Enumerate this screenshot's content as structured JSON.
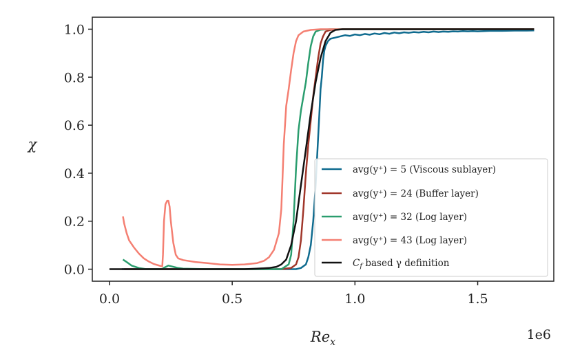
{
  "chart_data": {
    "type": "line",
    "title": "",
    "xlabel": "Re_x",
    "xlabel_display": "Rex",
    "ylabel": "χ",
    "offset_label": "1e6",
    "xlim": [
      -0.07,
      1.81
    ],
    "ylim": [
      -0.05,
      1.05
    ],
    "xticks": [
      0.0,
      0.5,
      1.0,
      1.5
    ],
    "xtick_labels": [
      "0.0",
      "0.5",
      "1.0",
      "1.5"
    ],
    "yticks": [
      0.0,
      0.2,
      0.4,
      0.6,
      0.8,
      1.0
    ],
    "ytick_labels": [
      "0.0",
      "0.2",
      "0.4",
      "0.6",
      "0.8",
      "1.0"
    ],
    "grid": false,
    "legend_position": "lower-right",
    "series": [
      {
        "name": "avg(y+) = 5 (Viscous sublayer)",
        "legend": "avg(y⁺) = 5 (Viscous sublayer)",
        "color": "#0f6b8f",
        "points": [
          [
            0.05,
            0.0
          ],
          [
            0.2,
            0.0
          ],
          [
            0.4,
            0.0
          ],
          [
            0.6,
            0.0
          ],
          [
            0.72,
            0.0
          ],
          [
            0.76,
            0.0
          ],
          [
            0.78,
            0.005
          ],
          [
            0.8,
            0.02
          ],
          [
            0.81,
            0.05
          ],
          [
            0.82,
            0.1
          ],
          [
            0.83,
            0.2
          ],
          [
            0.84,
            0.35
          ],
          [
            0.85,
            0.55
          ],
          [
            0.855,
            0.65
          ],
          [
            0.86,
            0.75
          ],
          [
            0.865,
            0.8
          ],
          [
            0.87,
            0.87
          ],
          [
            0.875,
            0.91
          ],
          [
            0.88,
            0.93
          ],
          [
            0.89,
            0.95
          ],
          [
            0.9,
            0.96
          ],
          [
            0.92,
            0.965
          ],
          [
            0.94,
            0.97
          ],
          [
            0.96,
            0.975
          ],
          [
            0.98,
            0.972
          ],
          [
            1.0,
            0.978
          ],
          [
            1.02,
            0.975
          ],
          [
            1.04,
            0.98
          ],
          [
            1.06,
            0.977
          ],
          [
            1.08,
            0.982
          ],
          [
            1.1,
            0.979
          ],
          [
            1.12,
            0.984
          ],
          [
            1.14,
            0.981
          ],
          [
            1.16,
            0.986
          ],
          [
            1.18,
            0.983
          ],
          [
            1.2,
            0.987
          ],
          [
            1.22,
            0.985
          ],
          [
            1.24,
            0.988
          ],
          [
            1.26,
            0.986
          ],
          [
            1.28,
            0.989
          ],
          [
            1.3,
            0.987
          ],
          [
            1.32,
            0.99
          ],
          [
            1.34,
            0.988
          ],
          [
            1.36,
            0.99
          ],
          [
            1.38,
            0.989
          ],
          [
            1.4,
            0.991
          ],
          [
            1.42,
            0.99
          ],
          [
            1.44,
            0.992
          ],
          [
            1.46,
            0.991
          ],
          [
            1.48,
            0.992
          ],
          [
            1.5,
            0.991
          ],
          [
            1.55,
            0.993
          ],
          [
            1.6,
            0.993
          ],
          [
            1.65,
            0.994
          ],
          [
            1.7,
            0.994
          ],
          [
            1.73,
            0.995
          ]
        ]
      },
      {
        "name": "avg(y+) = 24 (Buffer layer)",
        "legend": "avg(y⁺) = 24 (Buffer layer)",
        "color": "#a0362a",
        "points": [
          [
            0.06,
            0.0
          ],
          [
            0.3,
            0.0
          ],
          [
            0.6,
            0.0
          ],
          [
            0.7,
            0.0
          ],
          [
            0.74,
            0.005
          ],
          [
            0.76,
            0.02
          ],
          [
            0.77,
            0.05
          ],
          [
            0.78,
            0.12
          ],
          [
            0.79,
            0.25
          ],
          [
            0.8,
            0.4
          ],
          [
            0.81,
            0.52
          ],
          [
            0.82,
            0.62
          ],
          [
            0.83,
            0.72
          ],
          [
            0.84,
            0.8
          ],
          [
            0.85,
            0.88
          ],
          [
            0.86,
            0.94
          ],
          [
            0.87,
            0.97
          ],
          [
            0.88,
            0.99
          ],
          [
            0.9,
            0.997
          ],
          [
            0.95,
            1.0
          ],
          [
            1.2,
            1.0
          ],
          [
            1.5,
            1.0
          ],
          [
            1.73,
            1.0
          ]
        ]
      },
      {
        "name": "avg(y+) = 32 (Log layer)",
        "legend": "avg(y⁺) = 32 (Log layer)",
        "color": "#2a9d6e",
        "points": [
          [
            0.055,
            0.04
          ],
          [
            0.07,
            0.03
          ],
          [
            0.09,
            0.015
          ],
          [
            0.12,
            0.005
          ],
          [
            0.15,
            0.0
          ],
          [
            0.2,
            0.0
          ],
          [
            0.215,
            0.0
          ],
          [
            0.22,
            0.005
          ],
          [
            0.23,
            0.01
          ],
          [
            0.24,
            0.015
          ],
          [
            0.26,
            0.01
          ],
          [
            0.28,
            0.005
          ],
          [
            0.3,
            0.002
          ],
          [
            0.4,
            0.0
          ],
          [
            0.6,
            0.0
          ],
          [
            0.7,
            0.0
          ],
          [
            0.73,
            0.02
          ],
          [
            0.74,
            0.06
          ],
          [
            0.75,
            0.2
          ],
          [
            0.76,
            0.42
          ],
          [
            0.77,
            0.58
          ],
          [
            0.78,
            0.66
          ],
          [
            0.79,
            0.72
          ],
          [
            0.8,
            0.78
          ],
          [
            0.81,
            0.86
          ],
          [
            0.82,
            0.93
          ],
          [
            0.83,
            0.97
          ],
          [
            0.84,
            0.99
          ],
          [
            0.86,
            0.998
          ],
          [
            0.9,
            1.0
          ],
          [
            1.2,
            1.0
          ],
          [
            1.5,
            1.0
          ],
          [
            1.73,
            1.0
          ]
        ]
      },
      {
        "name": "avg(y+) = 43 (Log layer)",
        "legend": "avg(y⁺) = 43 (Log layer)",
        "color": "#f47f72",
        "points": [
          [
            0.055,
            0.22
          ],
          [
            0.06,
            0.19
          ],
          [
            0.07,
            0.15
          ],
          [
            0.08,
            0.12
          ],
          [
            0.1,
            0.09
          ],
          [
            0.12,
            0.065
          ],
          [
            0.14,
            0.045
          ],
          [
            0.16,
            0.032
          ],
          [
            0.18,
            0.022
          ],
          [
            0.2,
            0.016
          ],
          [
            0.21,
            0.013
          ],
          [
            0.215,
            0.012
          ],
          [
            0.218,
            0.06
          ],
          [
            0.222,
            0.2
          ],
          [
            0.228,
            0.27
          ],
          [
            0.235,
            0.285
          ],
          [
            0.24,
            0.285
          ],
          [
            0.245,
            0.26
          ],
          [
            0.25,
            0.2
          ],
          [
            0.26,
            0.11
          ],
          [
            0.27,
            0.06
          ],
          [
            0.28,
            0.045
          ],
          [
            0.3,
            0.038
          ],
          [
            0.35,
            0.03
          ],
          [
            0.4,
            0.025
          ],
          [
            0.45,
            0.02
          ],
          [
            0.5,
            0.018
          ],
          [
            0.55,
            0.02
          ],
          [
            0.6,
            0.025
          ],
          [
            0.63,
            0.035
          ],
          [
            0.65,
            0.05
          ],
          [
            0.67,
            0.08
          ],
          [
            0.69,
            0.15
          ],
          [
            0.7,
            0.25
          ],
          [
            0.705,
            0.38
          ],
          [
            0.71,
            0.52
          ],
          [
            0.715,
            0.6
          ],
          [
            0.72,
            0.68
          ],
          [
            0.73,
            0.75
          ],
          [
            0.74,
            0.83
          ],
          [
            0.75,
            0.9
          ],
          [
            0.76,
            0.95
          ],
          [
            0.77,
            0.975
          ],
          [
            0.79,
            0.99
          ],
          [
            0.82,
            0.997
          ],
          [
            0.86,
            1.0
          ],
          [
            1.2,
            1.0
          ],
          [
            1.5,
            1.0
          ],
          [
            1.73,
            1.0
          ]
        ]
      },
      {
        "name": "Cf based γ definition",
        "legend_main": "C",
        "legend_sub": "f",
        "legend_rest": " based γ definition",
        "color": "#111111",
        "points": [
          [
            0.0,
            0.0
          ],
          [
            0.2,
            0.0
          ],
          [
            0.4,
            0.0
          ],
          [
            0.55,
            0.0
          ],
          [
            0.6,
            0.002
          ],
          [
            0.65,
            0.005
          ],
          [
            0.68,
            0.01
          ],
          [
            0.7,
            0.02
          ],
          [
            0.72,
            0.04
          ],
          [
            0.74,
            0.1
          ],
          [
            0.76,
            0.2
          ],
          [
            0.78,
            0.35
          ],
          [
            0.8,
            0.5
          ],
          [
            0.82,
            0.65
          ],
          [
            0.84,
            0.78
          ],
          [
            0.86,
            0.88
          ],
          [
            0.88,
            0.95
          ],
          [
            0.9,
            0.985
          ],
          [
            0.92,
            0.997
          ],
          [
            0.95,
            1.0
          ],
          [
            1.2,
            1.0
          ],
          [
            1.5,
            1.0
          ],
          [
            1.73,
            1.0
          ]
        ]
      }
    ]
  }
}
